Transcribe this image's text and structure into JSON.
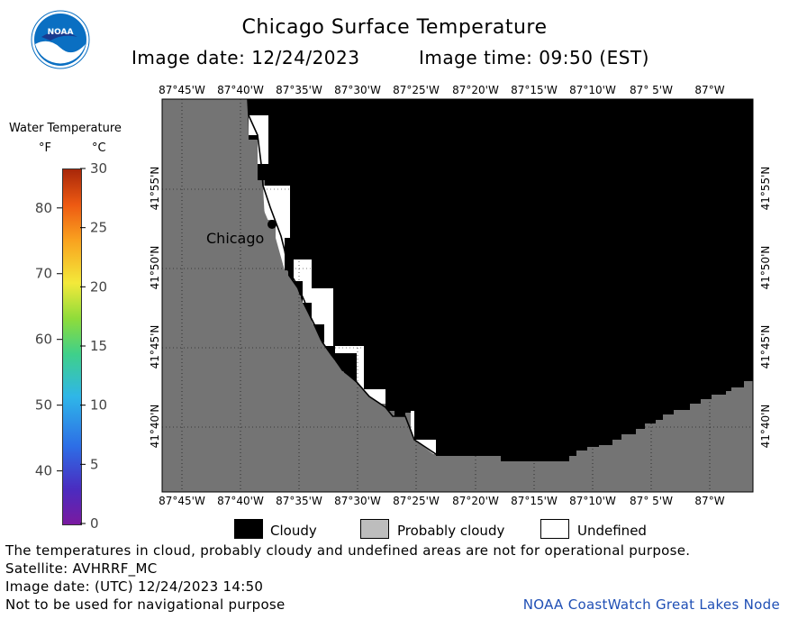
{
  "header": {
    "title": "Chicago Surface Temperature",
    "image_date_label": "Image date: 12/24/2023",
    "image_time_label": "Image time: 09:50 (EST)"
  },
  "logo": {
    "text": "NOAA",
    "colors": {
      "sky": "#0a6fc2",
      "wave": "#ffffff",
      "bird": "#1a3a8f"
    }
  },
  "colorbar": {
    "title": "Water Temperature",
    "unit_f": "°F",
    "unit_c": "°C",
    "f_ticks": [
      "80",
      "70",
      "60",
      "50",
      "40"
    ],
    "c_ticks": [
      "30",
      "25",
      "20",
      "15",
      "10",
      "5",
      "0"
    ],
    "range_c": [
      0,
      30
    ],
    "range_f": [
      32,
      86
    ]
  },
  "map": {
    "city_label": "Chicago",
    "lon_labels": [
      "87°45'W",
      "87°40'W",
      "87°35'W",
      "87°30'W",
      "87°25'W",
      "87°20'W",
      "87°15'W",
      "87°10'W",
      "87° 5'W",
      "87°W"
    ],
    "lat_labels": [
      "41°55'N",
      "41°50'N",
      "41°45'N",
      "41°40'N"
    ],
    "colors": {
      "land": "#747474",
      "cloud": "#000000",
      "undefined": "#ffffff",
      "probably_cloudy": "#bdbdbd"
    }
  },
  "legend": {
    "items": [
      {
        "label": "Cloudy",
        "color": "#000000"
      },
      {
        "label": "Probably cloudy",
        "color": "#bdbdbd"
      },
      {
        "label": "Undefined",
        "color": "#ffffff"
      }
    ]
  },
  "footer": {
    "disclaimer": "The temperatures in cloud, probably cloudy and undefined areas are not for operational purpose.",
    "satellite": "Satellite: AVHRRF_MC",
    "utc_date": "Image date: (UTC) 12/24/2023  14:50",
    "navigation": "Not to be used for navigational purpose",
    "credit": "NOAA CoastWatch Great Lakes Node"
  }
}
